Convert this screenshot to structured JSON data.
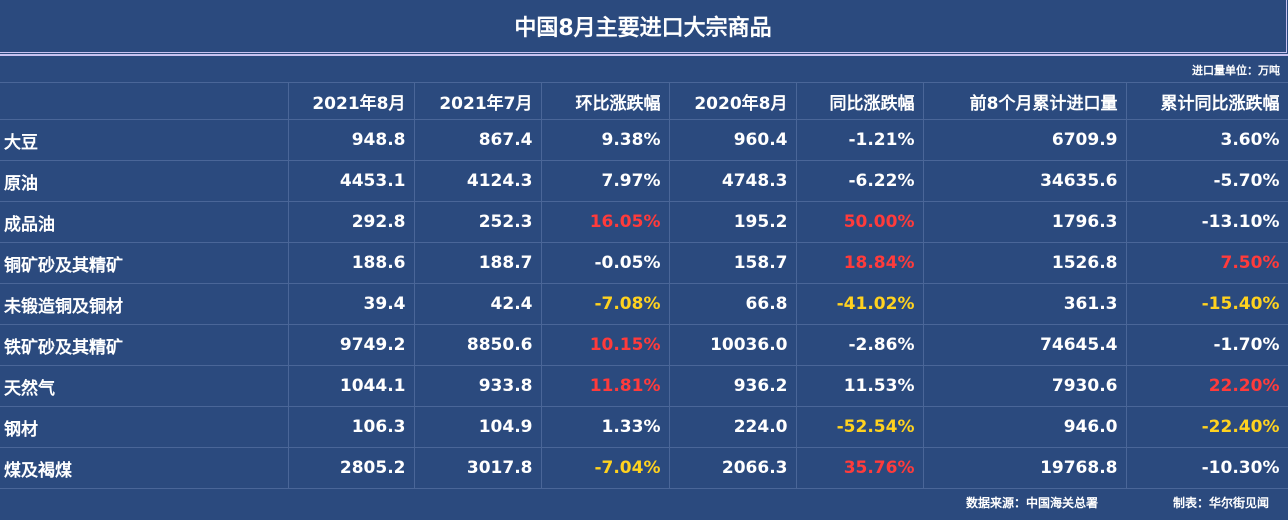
{
  "title": "中国8月主要进口大宗商品",
  "unit": "进口量单位：万吨",
  "source": "数据来源：中国海关总署",
  "maker": "制表：华尔街见闻",
  "chart_data": {
    "type": "table",
    "columns": [
      "",
      "2021年8月",
      "2021年7月",
      "环比涨跌幅",
      "2020年8月",
      "同比涨跌幅",
      "前8个月累计进口量",
      "累计同比涨跌幅"
    ],
    "rows": [
      {
        "name": "大豆",
        "cells": [
          "948.8",
          "867.4",
          "9.38%",
          "960.4",
          "-1.21%",
          "6709.9",
          "3.60%"
        ],
        "colors": [
          "",
          "",
          "",
          "",
          "",
          "",
          ""
        ]
      },
      {
        "name": "原油",
        "cells": [
          "4453.1",
          "4124.3",
          "7.97%",
          "4748.3",
          "-6.22%",
          "34635.6",
          "-5.70%"
        ],
        "colors": [
          "",
          "",
          "",
          "",
          "",
          "",
          ""
        ]
      },
      {
        "name": "成品油",
        "cells": [
          "292.8",
          "252.3",
          "16.05%",
          "195.2",
          "50.00%",
          "1796.3",
          "-13.10%"
        ],
        "colors": [
          "",
          "",
          "red",
          "",
          "red",
          "",
          ""
        ]
      },
      {
        "name": "铜矿砂及其精矿",
        "cells": [
          "188.6",
          "188.7",
          "-0.05%",
          "158.7",
          "18.84%",
          "1526.8",
          "7.50%"
        ],
        "colors": [
          "",
          "",
          "",
          "",
          "red",
          "",
          "red"
        ]
      },
      {
        "name": "未锻造铜及铜材",
        "cells": [
          "39.4",
          "42.4",
          "-7.08%",
          "66.8",
          "-41.02%",
          "361.3",
          "-15.40%"
        ],
        "colors": [
          "",
          "",
          "yellow",
          "",
          "yellow",
          "",
          "yellow"
        ]
      },
      {
        "name": "铁矿砂及其精矿",
        "cells": [
          "9749.2",
          "8850.6",
          "10.15%",
          "10036.0",
          "-2.86%",
          "74645.4",
          "-1.70%"
        ],
        "colors": [
          "",
          "",
          "red",
          "",
          "",
          "",
          ""
        ]
      },
      {
        "name": "天然气",
        "cells": [
          "1044.1",
          "933.8",
          "11.81%",
          "936.2",
          "11.53%",
          "7930.6",
          "22.20%"
        ],
        "colors": [
          "",
          "",
          "red",
          "",
          "",
          "",
          "red"
        ]
      },
      {
        "name": "钢材",
        "cells": [
          "106.3",
          "104.9",
          "1.33%",
          "224.0",
          "-52.54%",
          "946.0",
          "-22.40%"
        ],
        "colors": [
          "",
          "",
          "",
          "",
          "yellow",
          "",
          "yellow"
        ]
      },
      {
        "name": "煤及褐煤",
        "cells": [
          "2805.2",
          "3017.8",
          "-7.04%",
          "2066.3",
          "35.76%",
          "19768.8",
          "-10.30%"
        ],
        "colors": [
          "",
          "",
          "yellow",
          "",
          "red",
          "",
          ""
        ]
      }
    ],
    "highlight_colors": {
      "red": "#ff3b3b",
      "yellow": "#ffd21f"
    }
  }
}
